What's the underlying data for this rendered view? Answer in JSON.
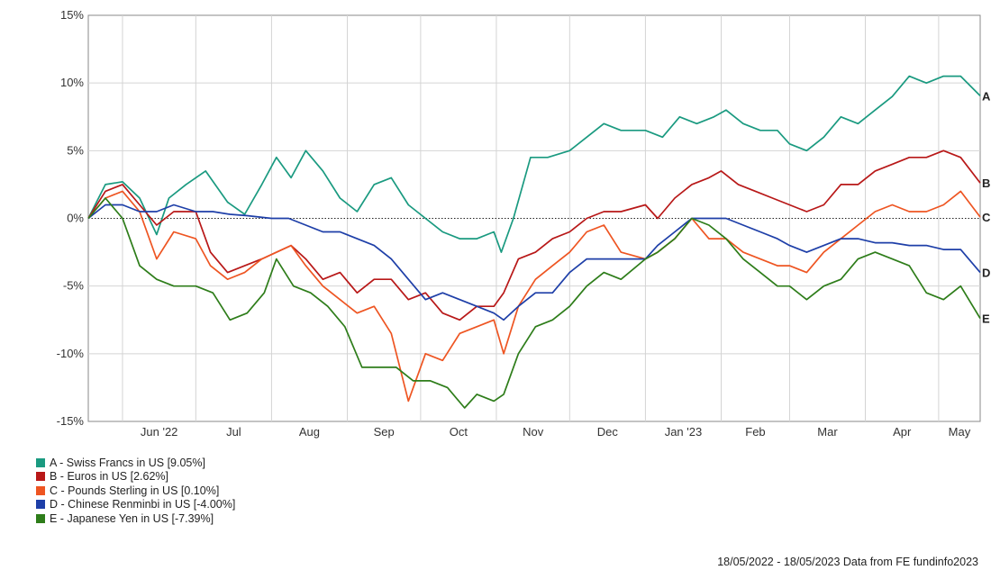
{
  "chart_data": {
    "type": "line",
    "ylim": [
      -15,
      15
    ],
    "y_ticks": [
      "15%",
      "10%",
      "5%",
      "0%",
      "-5%",
      "-10%",
      "-15%"
    ],
    "y_tick_values": [
      15,
      10,
      5,
      0,
      -5,
      -10,
      -15
    ],
    "x_labels": [
      "Jun '22",
      "Jul",
      "Aug",
      "Sep",
      "Oct",
      "Nov",
      "Dec",
      "Jan '23",
      "Feb",
      "Mar",
      "Apr",
      "May"
    ],
    "x_dates": [
      "2022-05-18",
      "2022-06-01",
      "2022-07-01",
      "2022-08-01",
      "2022-09-01",
      "2022-10-01",
      "2022-11-01",
      "2022-12-01",
      "2023-01-01",
      "2023-02-01",
      "2023-03-01",
      "2023-04-01",
      "2023-05-01",
      "2023-05-18"
    ],
    "grid": true,
    "zero_line": "dotted",
    "legend_position": "bottom-left",
    "series": [
      {
        "letter": "A",
        "legend_label": "A - Swiss Francs in US [9.05%]",
        "color": "#1a9a80",
        "points": [
          [
            "2022-05-18",
            0
          ],
          [
            "2022-05-25",
            2.5
          ],
          [
            "2022-06-01",
            2.7
          ],
          [
            "2022-06-08",
            1.5
          ],
          [
            "2022-06-15",
            -1.2
          ],
          [
            "2022-06-20",
            1.5
          ],
          [
            "2022-06-27",
            2.5
          ],
          [
            "2022-07-05",
            3.5
          ],
          [
            "2022-07-14",
            1.2
          ],
          [
            "2022-07-21",
            0.3
          ],
          [
            "2022-07-28",
            2.5
          ],
          [
            "2022-08-03",
            4.5
          ],
          [
            "2022-08-09",
            3
          ],
          [
            "2022-08-15",
            5
          ],
          [
            "2022-08-22",
            3.5
          ],
          [
            "2022-08-29",
            1.5
          ],
          [
            "2022-09-05",
            0.5
          ],
          [
            "2022-09-12",
            2.5
          ],
          [
            "2022-09-19",
            3
          ],
          [
            "2022-09-26",
            1
          ],
          [
            "2022-10-03",
            0
          ],
          [
            "2022-10-10",
            -1
          ],
          [
            "2022-10-17",
            -1.5
          ],
          [
            "2022-10-24",
            -1.5
          ],
          [
            "2022-10-31",
            -1
          ],
          [
            "2022-11-03",
            -2.5
          ],
          [
            "2022-11-08",
            0
          ],
          [
            "2022-11-15",
            4.5
          ],
          [
            "2022-11-22",
            4.5
          ],
          [
            "2022-12-01",
            5
          ],
          [
            "2022-12-08",
            6
          ],
          [
            "2022-12-15",
            7
          ],
          [
            "2022-12-22",
            6.5
          ],
          [
            "2023-01-01",
            6.5
          ],
          [
            "2023-01-08",
            6
          ],
          [
            "2023-01-15",
            7.5
          ],
          [
            "2023-01-22",
            7
          ],
          [
            "2023-01-29",
            7.5
          ],
          [
            "2023-02-03",
            8
          ],
          [
            "2023-02-10",
            7
          ],
          [
            "2023-02-17",
            6.5
          ],
          [
            "2023-02-24",
            6.5
          ],
          [
            "2023-03-01",
            5.5
          ],
          [
            "2023-03-08",
            5
          ],
          [
            "2023-03-15",
            6
          ],
          [
            "2023-03-22",
            7.5
          ],
          [
            "2023-03-29",
            7
          ],
          [
            "2023-04-05",
            8
          ],
          [
            "2023-04-12",
            9
          ],
          [
            "2023-04-19",
            10.5
          ],
          [
            "2023-04-26",
            10
          ],
          [
            "2023-05-03",
            10.5
          ],
          [
            "2023-05-10",
            10.5
          ],
          [
            "2023-05-18",
            9.05
          ]
        ]
      },
      {
        "letter": "B",
        "legend_label": "B - Euros in US [2.62%]",
        "color": "#b81818",
        "points": [
          [
            "2022-05-18",
            0
          ],
          [
            "2022-05-25",
            2
          ],
          [
            "2022-06-01",
            2.5
          ],
          [
            "2022-06-08",
            1
          ],
          [
            "2022-06-15",
            -0.5
          ],
          [
            "2022-06-22",
            0.5
          ],
          [
            "2022-07-01",
            0.5
          ],
          [
            "2022-07-07",
            -2.5
          ],
          [
            "2022-07-14",
            -4
          ],
          [
            "2022-07-21",
            -3.5
          ],
          [
            "2022-07-28",
            -3
          ],
          [
            "2022-08-03",
            -2.5
          ],
          [
            "2022-08-09",
            -2
          ],
          [
            "2022-08-15",
            -3
          ],
          [
            "2022-08-22",
            -4.5
          ],
          [
            "2022-08-29",
            -4
          ],
          [
            "2022-09-05",
            -5.5
          ],
          [
            "2022-09-12",
            -4.5
          ],
          [
            "2022-09-19",
            -4.5
          ],
          [
            "2022-09-26",
            -6
          ],
          [
            "2022-10-03",
            -5.5
          ],
          [
            "2022-10-10",
            -7
          ],
          [
            "2022-10-17",
            -7.5
          ],
          [
            "2022-10-24",
            -6.5
          ],
          [
            "2022-10-31",
            -6.5
          ],
          [
            "2022-11-04",
            -5.5
          ],
          [
            "2022-11-10",
            -3
          ],
          [
            "2022-11-17",
            -2.5
          ],
          [
            "2022-11-24",
            -1.5
          ],
          [
            "2022-12-01",
            -1
          ],
          [
            "2022-12-08",
            0
          ],
          [
            "2022-12-15",
            0.5
          ],
          [
            "2022-12-22",
            0.5
          ],
          [
            "2023-01-01",
            1
          ],
          [
            "2023-01-06",
            0
          ],
          [
            "2023-01-13",
            1.5
          ],
          [
            "2023-01-20",
            2.5
          ],
          [
            "2023-01-27",
            3
          ],
          [
            "2023-02-01",
            3.5
          ],
          [
            "2023-02-08",
            2.5
          ],
          [
            "2023-02-15",
            2
          ],
          [
            "2023-02-22",
            1.5
          ],
          [
            "2023-03-01",
            1
          ],
          [
            "2023-03-08",
            0.5
          ],
          [
            "2023-03-15",
            1
          ],
          [
            "2023-03-22",
            2.5
          ],
          [
            "2023-03-29",
            2.5
          ],
          [
            "2023-04-05",
            3.5
          ],
          [
            "2023-04-12",
            4
          ],
          [
            "2023-04-19",
            4.5
          ],
          [
            "2023-04-26",
            4.5
          ],
          [
            "2023-05-03",
            5
          ],
          [
            "2023-05-10",
            4.5
          ],
          [
            "2023-05-18",
            2.62
          ]
        ]
      },
      {
        "letter": "C",
        "legend_label": "C - Pounds Sterling in US [0.10%]",
        "color": "#ee5522",
        "points": [
          [
            "2022-05-18",
            0
          ],
          [
            "2022-05-25",
            1.5
          ],
          [
            "2022-06-01",
            2
          ],
          [
            "2022-06-08",
            0.5
          ],
          [
            "2022-06-15",
            -3
          ],
          [
            "2022-06-22",
            -1
          ],
          [
            "2022-07-01",
            -1.5
          ],
          [
            "2022-07-07",
            -3.5
          ],
          [
            "2022-07-14",
            -4.5
          ],
          [
            "2022-07-21",
            -4
          ],
          [
            "2022-07-28",
            -3
          ],
          [
            "2022-08-03",
            -2.5
          ],
          [
            "2022-08-09",
            -2
          ],
          [
            "2022-08-15",
            -3.5
          ],
          [
            "2022-08-22",
            -5
          ],
          [
            "2022-08-29",
            -6
          ],
          [
            "2022-09-05",
            -7
          ],
          [
            "2022-09-12",
            -6.5
          ],
          [
            "2022-09-19",
            -8.5
          ],
          [
            "2022-09-26",
            -13.5
          ],
          [
            "2022-10-03",
            -10
          ],
          [
            "2022-10-10",
            -10.5
          ],
          [
            "2022-10-17",
            -8.5
          ],
          [
            "2022-10-24",
            -8
          ],
          [
            "2022-10-31",
            -7.5
          ],
          [
            "2022-11-04",
            -10
          ],
          [
            "2022-11-10",
            -6.5
          ],
          [
            "2022-11-17",
            -4.5
          ],
          [
            "2022-11-24",
            -3.5
          ],
          [
            "2022-12-01",
            -2.5
          ],
          [
            "2022-12-08",
            -1
          ],
          [
            "2022-12-15",
            -0.5
          ],
          [
            "2022-12-22",
            -2.5
          ],
          [
            "2023-01-01",
            -3
          ],
          [
            "2023-01-06",
            -2.5
          ],
          [
            "2023-01-13",
            -1.5
          ],
          [
            "2023-01-20",
            0
          ],
          [
            "2023-01-27",
            -1.5
          ],
          [
            "2023-02-03",
            -1.5
          ],
          [
            "2023-02-10",
            -2.5
          ],
          [
            "2023-02-17",
            -3
          ],
          [
            "2023-02-24",
            -3.5
          ],
          [
            "2023-03-01",
            -3.5
          ],
          [
            "2023-03-08",
            -4
          ],
          [
            "2023-03-15",
            -2.5
          ],
          [
            "2023-03-22",
            -1.5
          ],
          [
            "2023-03-29",
            -0.5
          ],
          [
            "2023-04-05",
            0.5
          ],
          [
            "2023-04-12",
            1
          ],
          [
            "2023-04-19",
            0.5
          ],
          [
            "2023-04-26",
            0.5
          ],
          [
            "2023-05-03",
            1
          ],
          [
            "2023-05-10",
            2
          ],
          [
            "2023-05-18",
            0.1
          ]
        ]
      },
      {
        "letter": "D",
        "legend_label": "D - Chinese Renminbi in US [-4.00%]",
        "color": "#1e3fa8",
        "points": [
          [
            "2022-05-18",
            0
          ],
          [
            "2022-05-25",
            1
          ],
          [
            "2022-06-01",
            1
          ],
          [
            "2022-06-08",
            0.5
          ],
          [
            "2022-06-15",
            0.5
          ],
          [
            "2022-06-22",
            1
          ],
          [
            "2022-07-01",
            0.5
          ],
          [
            "2022-07-08",
            0.5
          ],
          [
            "2022-07-15",
            0.3
          ],
          [
            "2022-07-22",
            0.2
          ],
          [
            "2022-08-01",
            0
          ],
          [
            "2022-08-08",
            0
          ],
          [
            "2022-08-15",
            -0.5
          ],
          [
            "2022-08-22",
            -1
          ],
          [
            "2022-08-29",
            -1
          ],
          [
            "2022-09-05",
            -1.5
          ],
          [
            "2022-09-12",
            -2
          ],
          [
            "2022-09-19",
            -3
          ],
          [
            "2022-09-26",
            -4.5
          ],
          [
            "2022-10-03",
            -6
          ],
          [
            "2022-10-10",
            -5.5
          ],
          [
            "2022-10-17",
            -6
          ],
          [
            "2022-10-24",
            -6.5
          ],
          [
            "2022-10-31",
            -7
          ],
          [
            "2022-11-04",
            -7.5
          ],
          [
            "2022-11-10",
            -6.5
          ],
          [
            "2022-11-17",
            -5.5
          ],
          [
            "2022-11-24",
            -5.5
          ],
          [
            "2022-12-01",
            -4
          ],
          [
            "2022-12-08",
            -3
          ],
          [
            "2022-12-15",
            -3
          ],
          [
            "2022-12-22",
            -3
          ],
          [
            "2023-01-01",
            -3
          ],
          [
            "2023-01-06",
            -2
          ],
          [
            "2023-01-13",
            -1
          ],
          [
            "2023-01-20",
            0
          ],
          [
            "2023-01-27",
            0
          ],
          [
            "2023-02-03",
            0
          ],
          [
            "2023-02-10",
            -0.5
          ],
          [
            "2023-02-17",
            -1
          ],
          [
            "2023-02-24",
            -1.5
          ],
          [
            "2023-03-01",
            -2
          ],
          [
            "2023-03-08",
            -2.5
          ],
          [
            "2023-03-15",
            -2
          ],
          [
            "2023-03-22",
            -1.5
          ],
          [
            "2023-03-29",
            -1.5
          ],
          [
            "2023-04-05",
            -1.8
          ],
          [
            "2023-04-12",
            -1.8
          ],
          [
            "2023-04-19",
            -2
          ],
          [
            "2023-04-26",
            -2
          ],
          [
            "2023-05-03",
            -2.3
          ],
          [
            "2023-05-10",
            -2.3
          ],
          [
            "2023-05-18",
            -4
          ]
        ]
      },
      {
        "letter": "E",
        "legend_label": "E - Japanese Yen in US [-7.39%]",
        "color": "#2e7d1a",
        "points": [
          [
            "2022-05-18",
            0
          ],
          [
            "2022-05-25",
            1.5
          ],
          [
            "2022-06-01",
            0
          ],
          [
            "2022-06-08",
            -3.5
          ],
          [
            "2022-06-15",
            -4.5
          ],
          [
            "2022-06-22",
            -5
          ],
          [
            "2022-07-01",
            -5
          ],
          [
            "2022-07-08",
            -5.5
          ],
          [
            "2022-07-15",
            -7.5
          ],
          [
            "2022-07-22",
            -7
          ],
          [
            "2022-07-29",
            -5.5
          ],
          [
            "2022-08-03",
            -3
          ],
          [
            "2022-08-10",
            -5
          ],
          [
            "2022-08-17",
            -5.5
          ],
          [
            "2022-08-24",
            -6.5
          ],
          [
            "2022-08-31",
            -8
          ],
          [
            "2022-09-07",
            -11
          ],
          [
            "2022-09-14",
            -11
          ],
          [
            "2022-09-21",
            -11
          ],
          [
            "2022-09-28",
            -12
          ],
          [
            "2022-10-05",
            -12
          ],
          [
            "2022-10-12",
            -12.5
          ],
          [
            "2022-10-19",
            -14
          ],
          [
            "2022-10-24",
            -13
          ],
          [
            "2022-10-31",
            -13.5
          ],
          [
            "2022-11-04",
            -13
          ],
          [
            "2022-11-10",
            -10
          ],
          [
            "2022-11-17",
            -8
          ],
          [
            "2022-11-24",
            -7.5
          ],
          [
            "2022-12-01",
            -6.5
          ],
          [
            "2022-12-08",
            -5
          ],
          [
            "2022-12-15",
            -4
          ],
          [
            "2022-12-22",
            -4.5
          ],
          [
            "2023-01-01",
            -3
          ],
          [
            "2023-01-06",
            -2.5
          ],
          [
            "2023-01-13",
            -1.5
          ],
          [
            "2023-01-20",
            0
          ],
          [
            "2023-01-27",
            -0.5
          ],
          [
            "2023-02-03",
            -1.5
          ],
          [
            "2023-02-10",
            -3
          ],
          [
            "2023-02-17",
            -4
          ],
          [
            "2023-02-24",
            -5
          ],
          [
            "2023-03-01",
            -5
          ],
          [
            "2023-03-08",
            -6
          ],
          [
            "2023-03-15",
            -5
          ],
          [
            "2023-03-22",
            -4.5
          ],
          [
            "2023-03-29",
            -3
          ],
          [
            "2023-04-05",
            -2.5
          ],
          [
            "2023-04-12",
            -3
          ],
          [
            "2023-04-19",
            -3.5
          ],
          [
            "2023-04-26",
            -5.5
          ],
          [
            "2023-05-03",
            -6
          ],
          [
            "2023-05-10",
            -5
          ],
          [
            "2023-05-18",
            -7.39
          ]
        ]
      }
    ]
  },
  "footer_text": "18/05/2022 - 18/05/2023 Data from FE fundinfo2023"
}
